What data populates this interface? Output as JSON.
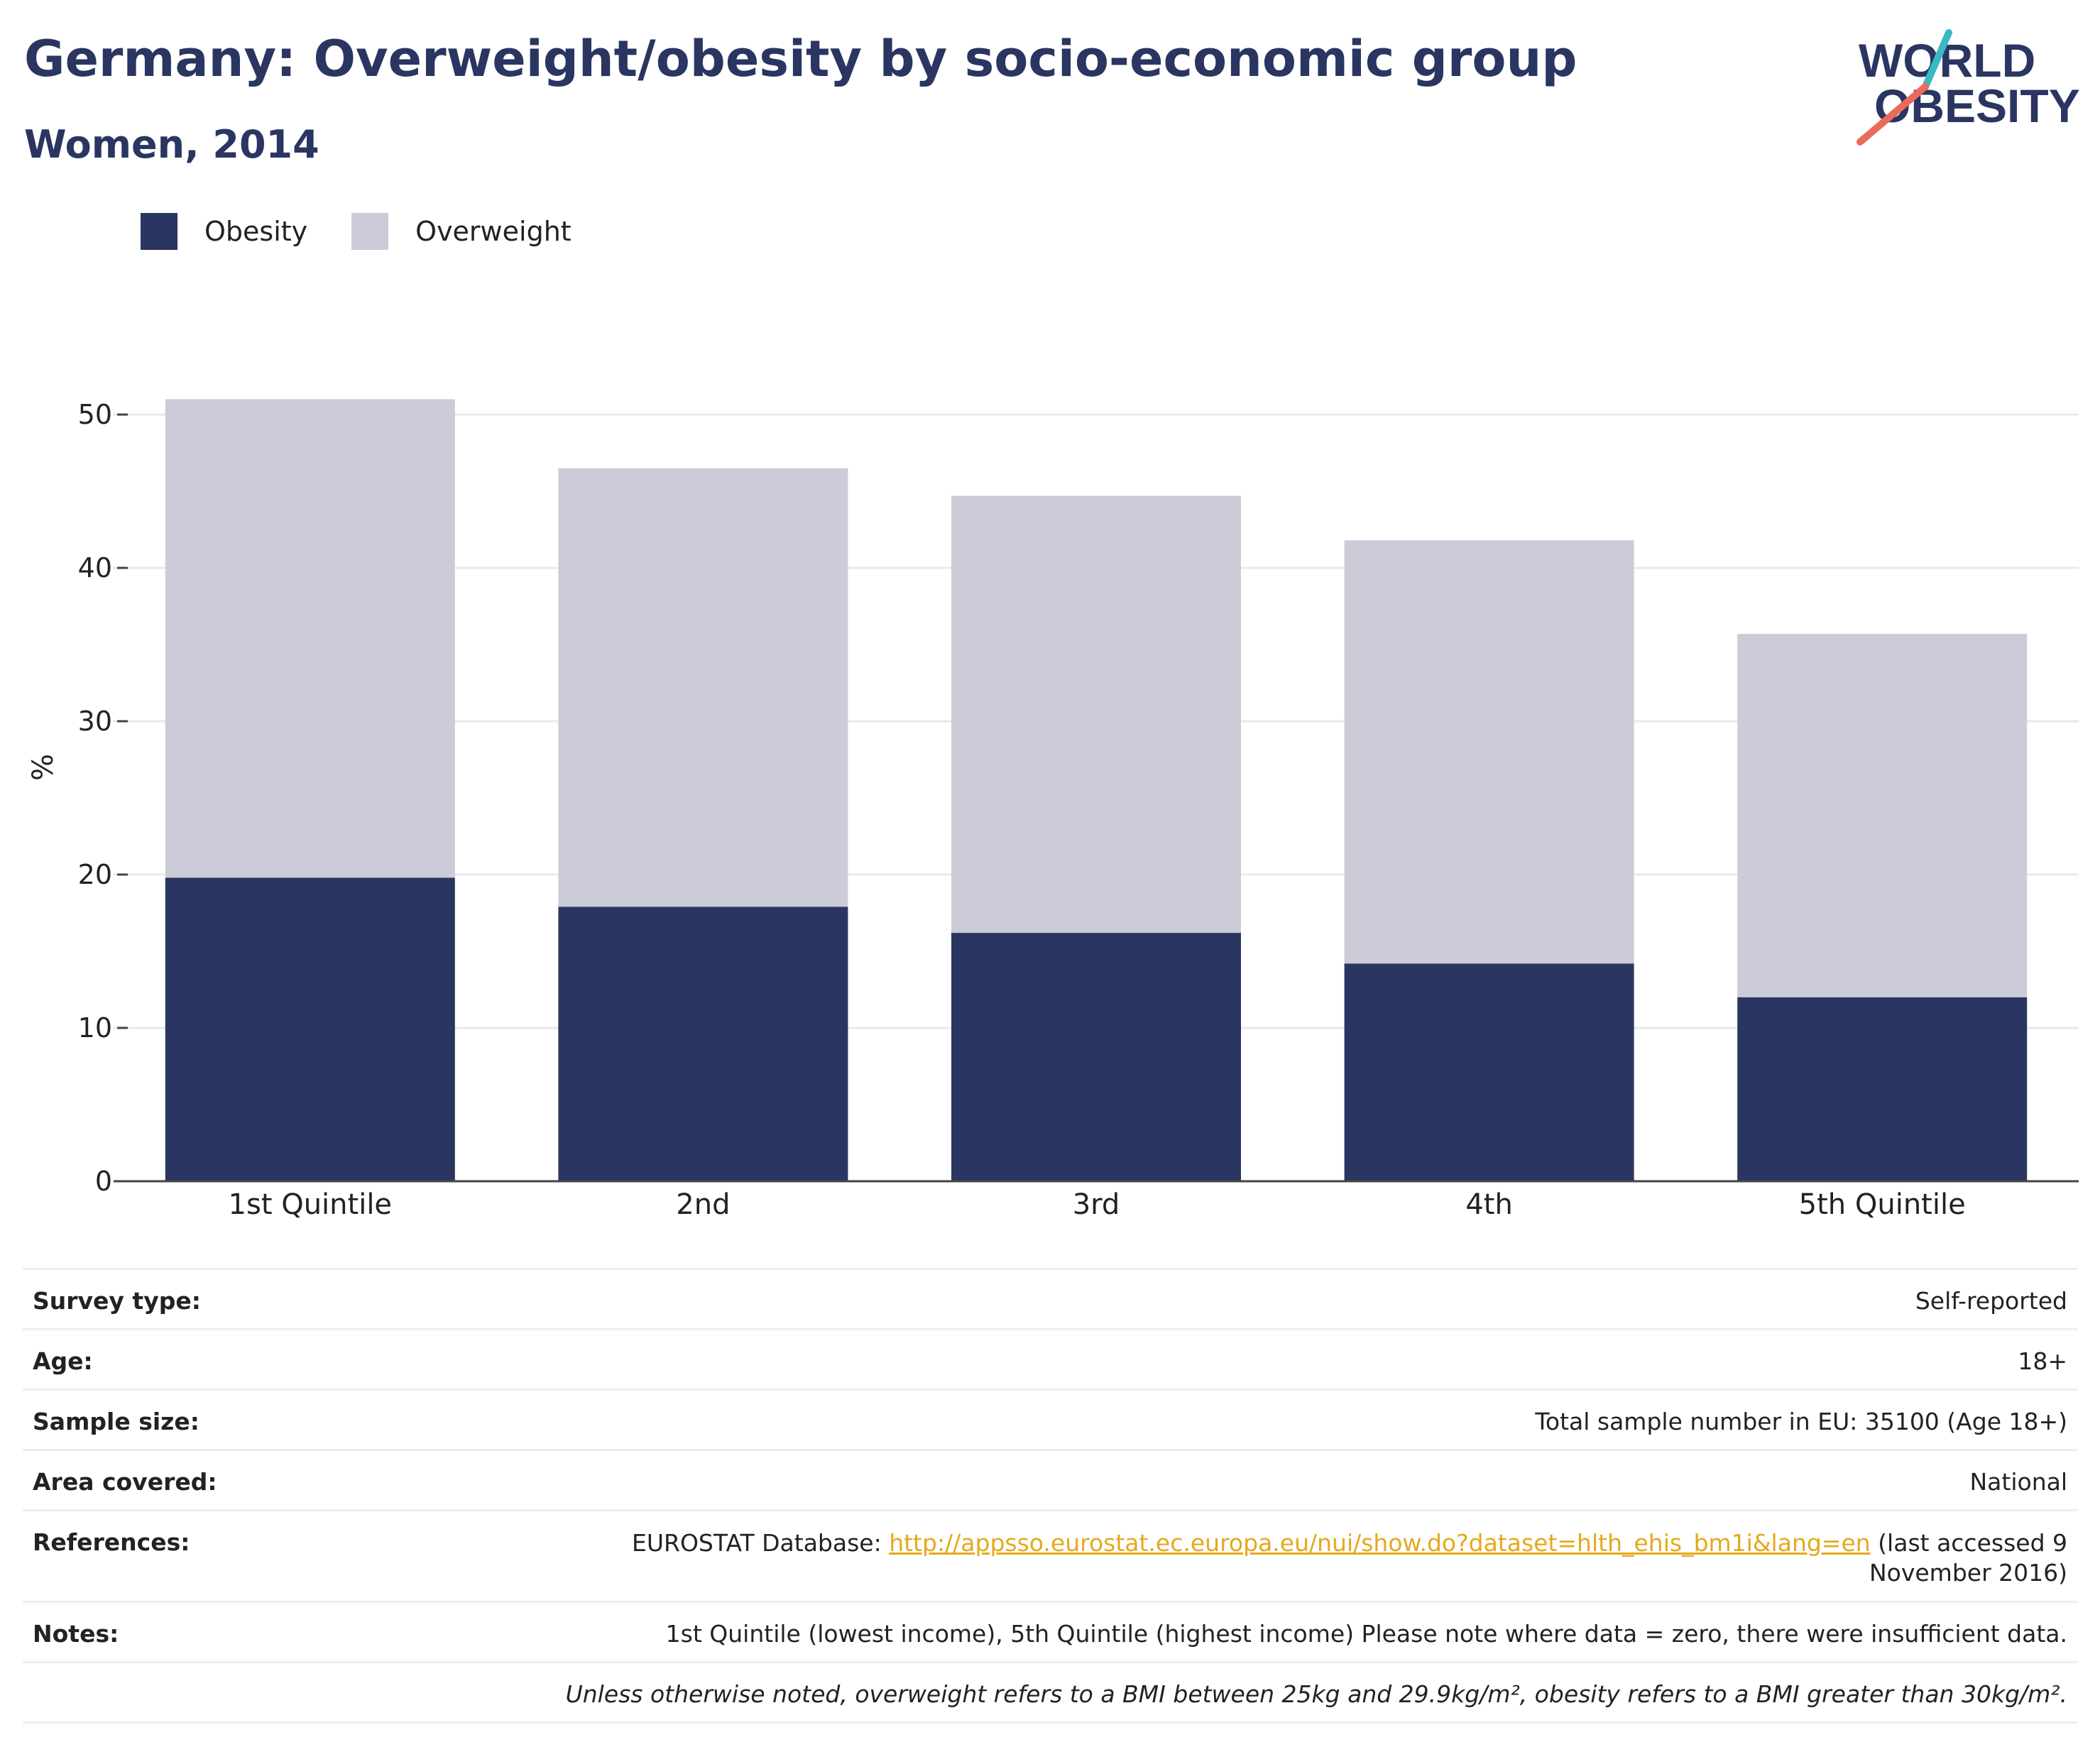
{
  "header": {
    "title": "Germany: Overweight/obesity by socio-economic group",
    "subtitle": "Women, 2014",
    "logo_line1": "WORLD",
    "logo_line2": "OBESITY"
  },
  "colors": {
    "obesity": "#2a3561",
    "overweight": "#cbccd8",
    "title": "#2a3561",
    "link": "#e5a91b",
    "logo_teal": "#3bb8c1",
    "logo_coral": "#ea6b5c"
  },
  "chart_data": {
    "type": "bar",
    "stacked": true,
    "title": "Germany: Overweight/obesity by socio-economic group",
    "subtitle": "Women, 2014",
    "ylabel": "%",
    "xlabel": "",
    "ylim": [
      0,
      55
    ],
    "yticks": [
      0,
      10,
      20,
      30,
      40,
      50
    ],
    "grid": true,
    "legend_position": "top-left",
    "categories": [
      "1st Quintile",
      "2nd",
      "3rd",
      "4th",
      "5th Quintile"
    ],
    "series": [
      {
        "name": "Obesity",
        "values": [
          19.8,
          17.9,
          16.2,
          14.2,
          12.0
        ]
      },
      {
        "name": "Overweight",
        "values": [
          31.2,
          28.6,
          28.5,
          27.6,
          23.7
        ]
      }
    ]
  },
  "info": {
    "survey_label": "Survey type:",
    "survey_value": "Self-reported",
    "age_label": "Age:",
    "age_value": "18+",
    "sample_label": "Sample size:",
    "sample_value": "Total sample number in EU: 35100 (Age 18+)",
    "area_label": "Area covered:",
    "area_value": "National",
    "ref_label": "References:",
    "ref_prefix": "EUROSTAT Database: ",
    "ref_link": "http://appsso.eurostat.ec.europa.eu/nui/show.do?dataset=hlth_ehis_bm1i&lang=en",
    "ref_suffix": " (last accessed 9 November 2016)",
    "notes_label": "Notes:",
    "notes_value": "1st Quintile (lowest income), 5th Quintile (highest income) Please note where data = zero, there were insufficient data.",
    "footnote": "Unless otherwise noted, overweight refers to a BMI between 25kg and 29.9kg/m², obesity refers to a BMI greater than 30kg/m²."
  }
}
